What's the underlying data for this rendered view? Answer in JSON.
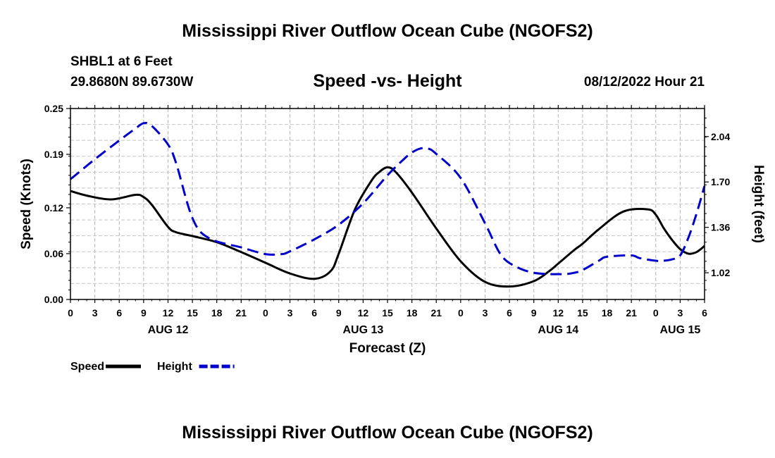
{
  "header": {
    "title": "Mississippi River Outflow Ocean Cube (NGOFS2)",
    "station": "SHBL1 at 6 Feet",
    "coords": "29.8680N  89.6730W",
    "subtitle": "Speed -vs- Height",
    "datetime": "08/12/2022 Hour 21"
  },
  "footer": {
    "title": "Mississippi River Outflow Ocean Cube (NGOFS2)"
  },
  "chart_data": {
    "type": "line",
    "title": "Speed -vs- Height",
    "xlabel": "Forecast (Z)",
    "ylabel_left": "Speed (Knots)",
    "ylabel_right": "Height (feet)",
    "x_range": [
      0,
      78
    ],
    "x_ticks": [
      0,
      3,
      6,
      9,
      12,
      15,
      18,
      21,
      24,
      27,
      30,
      33,
      36,
      39,
      42,
      45,
      48,
      51,
      54,
      57,
      60,
      63,
      66,
      69,
      72,
      75,
      78
    ],
    "x_tick_labels": [
      "0",
      "3",
      "6",
      "9",
      "12",
      "15",
      "18",
      "21",
      "0",
      "3",
      "6",
      "9",
      "12",
      "15",
      "18",
      "21",
      "0",
      "3",
      "6",
      "9",
      "12",
      "15",
      "18",
      "21",
      "0",
      "3",
      "6"
    ],
    "date_labels": [
      {
        "x": 12,
        "label": "AUG 12"
      },
      {
        "x": 36,
        "label": "AUG 13"
      },
      {
        "x": 60,
        "label": "AUG 14"
      },
      {
        "x": 75,
        "label": "AUG 15"
      }
    ],
    "y_left_range": [
      0,
      0.25
    ],
    "y_left_ticks": [
      0.0,
      0.06,
      0.12,
      0.19,
      0.25
    ],
    "y_left_tick_labels": [
      "0.00",
      "0.06",
      "0.12",
      "0.19",
      "0.25"
    ],
    "y_right_range": [
      0.82,
      2.25
    ],
    "y_right_ticks": [
      1.02,
      1.36,
      1.7,
      2.04
    ],
    "y_right_tick_labels": [
      "1.02",
      "1.36",
      "1.70",
      "2.04"
    ],
    "grid": true,
    "series": [
      {
        "name": "Speed",
        "axis": "left",
        "color": "#000000",
        "dash": "solid",
        "x": [
          0,
          2,
          5,
          8,
          9,
          10,
          12,
          13,
          15,
          18,
          21,
          24,
          27,
          30,
          32,
          33,
          35,
          37,
          38,
          39,
          40,
          42,
          45,
          48,
          51,
          54,
          57,
          59,
          60,
          62,
          63,
          65,
          68,
          71,
          72,
          73,
          74,
          75,
          76,
          77,
          78
        ],
        "y": [
          0.142,
          0.136,
          0.131,
          0.137,
          0.134,
          0.124,
          0.095,
          0.088,
          0.083,
          0.075,
          0.062,
          0.048,
          0.034,
          0.027,
          0.037,
          0.06,
          0.118,
          0.155,
          0.167,
          0.173,
          0.167,
          0.14,
          0.093,
          0.05,
          0.023,
          0.017,
          0.024,
          0.038,
          0.047,
          0.065,
          0.073,
          0.092,
          0.115,
          0.118,
          0.111,
          0.093,
          0.078,
          0.066,
          0.06,
          0.062,
          0.07
        ]
      },
      {
        "name": "Height",
        "axis": "right",
        "color": "#0000cc",
        "dash": "dashed",
        "x": [
          0,
          3,
          6,
          8,
          9,
          10,
          12,
          13,
          15,
          17,
          21,
          24,
          26,
          27,
          30,
          33,
          36,
          39,
          41,
          42,
          43,
          44,
          45,
          48,
          51,
          53,
          55,
          57,
          59,
          60,
          61,
          62,
          63,
          65,
          66,
          69,
          70,
          72,
          73,
          74,
          75,
          76,
          77,
          78
        ],
        "y": [
          1.72,
          1.87,
          2.01,
          2.1,
          2.14,
          2.12,
          1.98,
          1.84,
          1.43,
          1.28,
          1.21,
          1.16,
          1.16,
          1.18,
          1.27,
          1.38,
          1.54,
          1.75,
          1.87,
          1.92,
          1.95,
          1.95,
          1.91,
          1.73,
          1.39,
          1.15,
          1.06,
          1.02,
          1.01,
          1.01,
          1.01,
          1.02,
          1.04,
          1.11,
          1.14,
          1.15,
          1.13,
          1.11,
          1.11,
          1.12,
          1.15,
          1.28,
          1.46,
          1.67
        ]
      }
    ],
    "legend": {
      "position": "bottom-left",
      "entries": [
        "Speed",
        "Height"
      ]
    }
  }
}
